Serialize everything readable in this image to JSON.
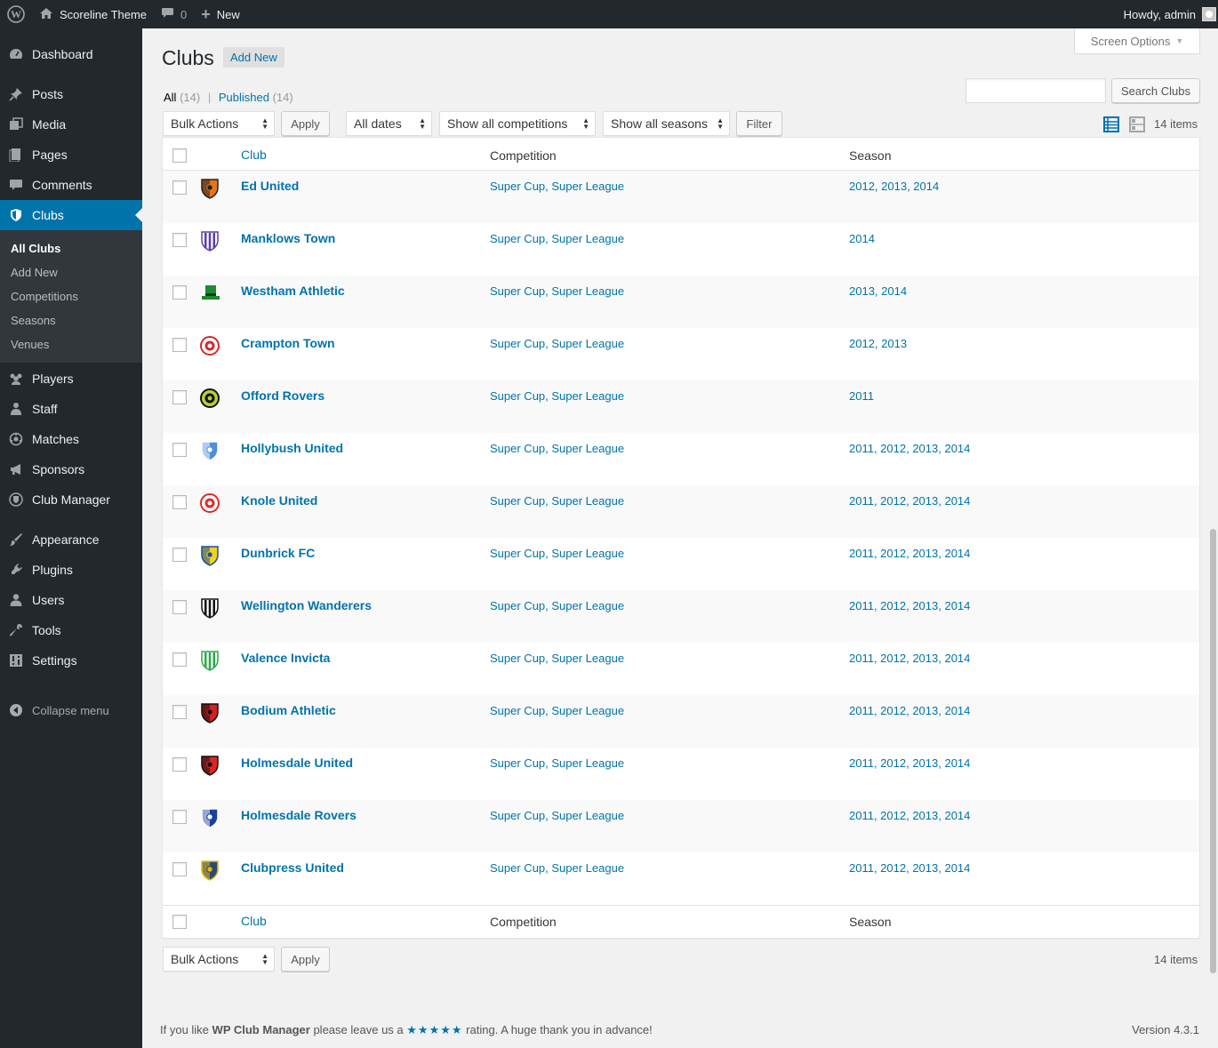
{
  "adminbar": {
    "site_name": "Scoreline Theme",
    "comments_count": "0",
    "new_label": "New",
    "howdy": "Howdy, admin"
  },
  "sidebar": {
    "items": [
      {
        "label": "Dashboard",
        "icon": "dashboard-icon"
      },
      {
        "label": "Posts",
        "icon": "pin-icon"
      },
      {
        "label": "Media",
        "icon": "media-icon"
      },
      {
        "label": "Pages",
        "icon": "pages-icon"
      },
      {
        "label": "Comments",
        "icon": "comment-icon"
      },
      {
        "label": "Clubs",
        "icon": "shield-icon"
      },
      {
        "label": "Players",
        "icon": "groups-icon"
      },
      {
        "label": "Staff",
        "icon": "staff-icon"
      },
      {
        "label": "Matches",
        "icon": "matches-icon"
      },
      {
        "label": "Sponsors",
        "icon": "megaphone-icon"
      },
      {
        "label": "Club Manager",
        "icon": "club-manager-icon"
      },
      {
        "label": "Appearance",
        "icon": "brush-icon"
      },
      {
        "label": "Plugins",
        "icon": "plugin-icon"
      },
      {
        "label": "Users",
        "icon": "user-icon"
      },
      {
        "label": "Tools",
        "icon": "wrench-icon"
      },
      {
        "label": "Settings",
        "icon": "settings-icon"
      }
    ],
    "submenu": [
      "All Clubs",
      "Add New",
      "Competitions",
      "Seasons",
      "Venues"
    ],
    "collapse": "Collapse menu"
  },
  "page": {
    "title": "Clubs",
    "add_new": "Add New",
    "screen_options": "Screen Options",
    "filter_all": "All",
    "filter_all_count": "(14)",
    "filter_published": "Published",
    "filter_published_count": "(14)",
    "search_button": "Search Clubs",
    "bulk_actions": "Bulk Actions",
    "apply": "Apply",
    "all_dates": "All dates",
    "competitions_filter": "Show all competitions",
    "seasons_filter": "Show all seasons",
    "filter_button": "Filter",
    "items_count": "14 items"
  },
  "table": {
    "columns": {
      "club": "Club",
      "competition": "Competition",
      "season": "Season"
    },
    "rows": [
      {
        "name": "Ed United",
        "competition": "Super Cup, Super League",
        "season": "2012, 2013, 2014",
        "crest": {
          "primary": "#e8731a",
          "secondary": "#222222",
          "shape": "shield"
        }
      },
      {
        "name": "Manklows Town",
        "competition": "Super Cup, Super League",
        "season": "2014",
        "crest": {
          "primary": "#5b3fa8",
          "secondary": "#ffffff",
          "shape": "stripes"
        }
      },
      {
        "name": "Westham Athletic",
        "competition": "Super Cup, Super League",
        "season": "2013, 2014",
        "crest": {
          "primary": "#1f8a2e",
          "secondary": "#0d3d14",
          "shape": "hat"
        }
      },
      {
        "name": "Crampton Town",
        "competition": "Super Cup, Super League",
        "season": "2012, 2013",
        "crest": {
          "primary": "#d62a2a",
          "secondary": "#ffffff",
          "shape": "circle"
        }
      },
      {
        "name": "Offord Rovers",
        "competition": "Super Cup, Super League",
        "season": "2011",
        "crest": {
          "primary": "#111111",
          "secondary": "#b6d230",
          "shape": "circle"
        }
      },
      {
        "name": "Hollybush United",
        "competition": "Super Cup, Super League",
        "season": "2011, 2012, 2013, 2014",
        "crest": {
          "primary": "#4f8fd8",
          "secondary": "#ffffff",
          "shape": "shield"
        }
      },
      {
        "name": "Knole United",
        "competition": "Super Cup, Super League",
        "season": "2011, 2012, 2013, 2014",
        "crest": {
          "primary": "#e02a2a",
          "secondary": "#ffffff",
          "shape": "circle"
        }
      },
      {
        "name": "Dunbrick FC",
        "competition": "Super Cup, Super League",
        "season": "2011, 2012, 2013, 2014",
        "crest": {
          "primary": "#f2d21b",
          "secondary": "#1c4d9a",
          "shape": "shield"
        }
      },
      {
        "name": "Wellington Wanderers",
        "competition": "Super Cup, Super League",
        "season": "2011, 2012, 2013, 2014",
        "crest": {
          "primary": "#111111",
          "secondary": "#ffffff",
          "shape": "stripes"
        }
      },
      {
        "name": "Valence Invicta",
        "competition": "Super Cup, Super League",
        "season": "2011, 2012, 2013, 2014",
        "crest": {
          "primary": "#2ea84a",
          "secondary": "#ffffff",
          "shape": "stripes"
        }
      },
      {
        "name": "Bodium Athletic",
        "competition": "Super Cup, Super League",
        "season": "2011, 2012, 2013, 2014",
        "crest": {
          "primary": "#d42020",
          "secondary": "#111111",
          "shape": "shield"
        }
      },
      {
        "name": "Holmesdale United",
        "competition": "Super Cup, Super League",
        "season": "2011, 2012, 2013, 2014",
        "crest": {
          "primary": "#e02424",
          "secondary": "#111111",
          "shape": "shield"
        }
      },
      {
        "name": "Holmesdale Rovers",
        "competition": "Super Cup, Super League",
        "season": "2011, 2012, 2013, 2014",
        "crest": {
          "primary": "#1d3f9a",
          "secondary": "#ffffff",
          "shape": "shield"
        }
      },
      {
        "name": "Clubpress United",
        "competition": "Super Cup, Super League",
        "season": "2011, 2012, 2013, 2014",
        "crest": {
          "primary": "#2c4b6e",
          "secondary": "#e5b81e",
          "shape": "shield"
        }
      }
    ]
  },
  "footer": {
    "text_before": "If you like",
    "plugin": "WP Club Manager",
    "text_middle": "please leave us a",
    "stars": "★★★★★",
    "text_after": "rating. A huge thank you in advance!",
    "version": "Version 4.3.1"
  },
  "colors": {
    "accent": "#0073aa",
    "sidebar": "#23282d",
    "submenu": "#32373c"
  }
}
